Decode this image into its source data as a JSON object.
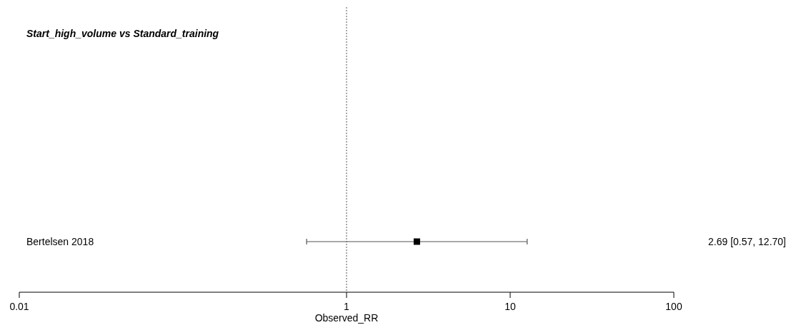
{
  "chart_data": {
    "type": "scatter",
    "title": "Start_high_volume vs Standard_training",
    "xlabel": "Observed_RR",
    "orientation": "horizontal",
    "categories": [
      "Bertelsen 2018"
    ],
    "values": [
      2.69
    ],
    "errors": [
      [
        0.57,
        12.7
      ]
    ],
    "annotations": [
      "2.69 [0.57, 12.70]"
    ],
    "color": "#000000",
    "marker": "square",
    "log": "x",
    "xlim": [
      0.01,
      100
    ],
    "xticks": [
      0.01,
      1,
      10,
      100
    ],
    "ref_lines": [
      {
        "axis": "x",
        "value": 1,
        "line_style": "dotted",
        "color": "#555555"
      }
    ]
  }
}
